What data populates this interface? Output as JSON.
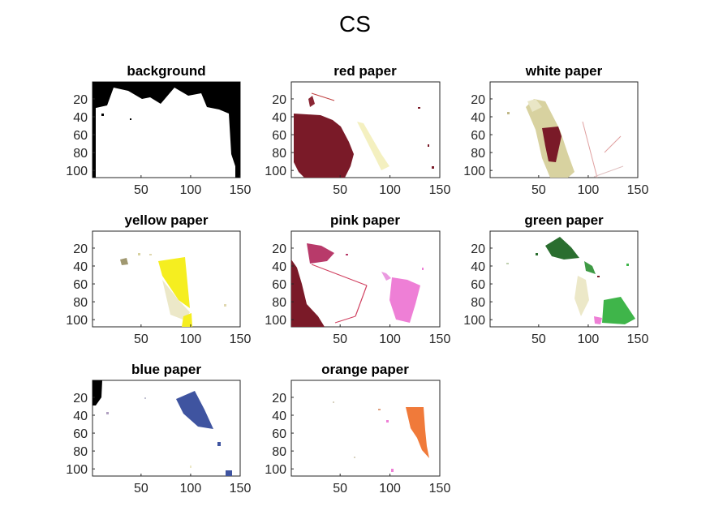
{
  "figure": {
    "title": "CS"
  },
  "axes_common": {
    "x_ticks": [
      "50",
      "100",
      "150"
    ],
    "y_ticks": [
      "20",
      "40",
      "60",
      "80",
      "100"
    ],
    "xlim": [
      1,
      150
    ],
    "ylim": [
      1,
      108
    ]
  },
  "panels": [
    {
      "title": "background"
    },
    {
      "title": "red paper"
    },
    {
      "title": "white paper"
    },
    {
      "title": "yellow paper"
    },
    {
      "title": "pink paper"
    },
    {
      "title": "green paper"
    },
    {
      "title": "blue paper"
    },
    {
      "title": "orange paper"
    }
  ],
  "colors": {
    "background": "#000000",
    "red": "#7a1a28",
    "white": "#d8d2a0",
    "yellow": "#f5ee20",
    "pink": "#ee7fd6",
    "pink_dark": "#b83a6a",
    "green": "#3fb54a",
    "green_dark": "#2a6e2f",
    "blue": "#3f54a0",
    "orange": "#f07a3a"
  }
}
